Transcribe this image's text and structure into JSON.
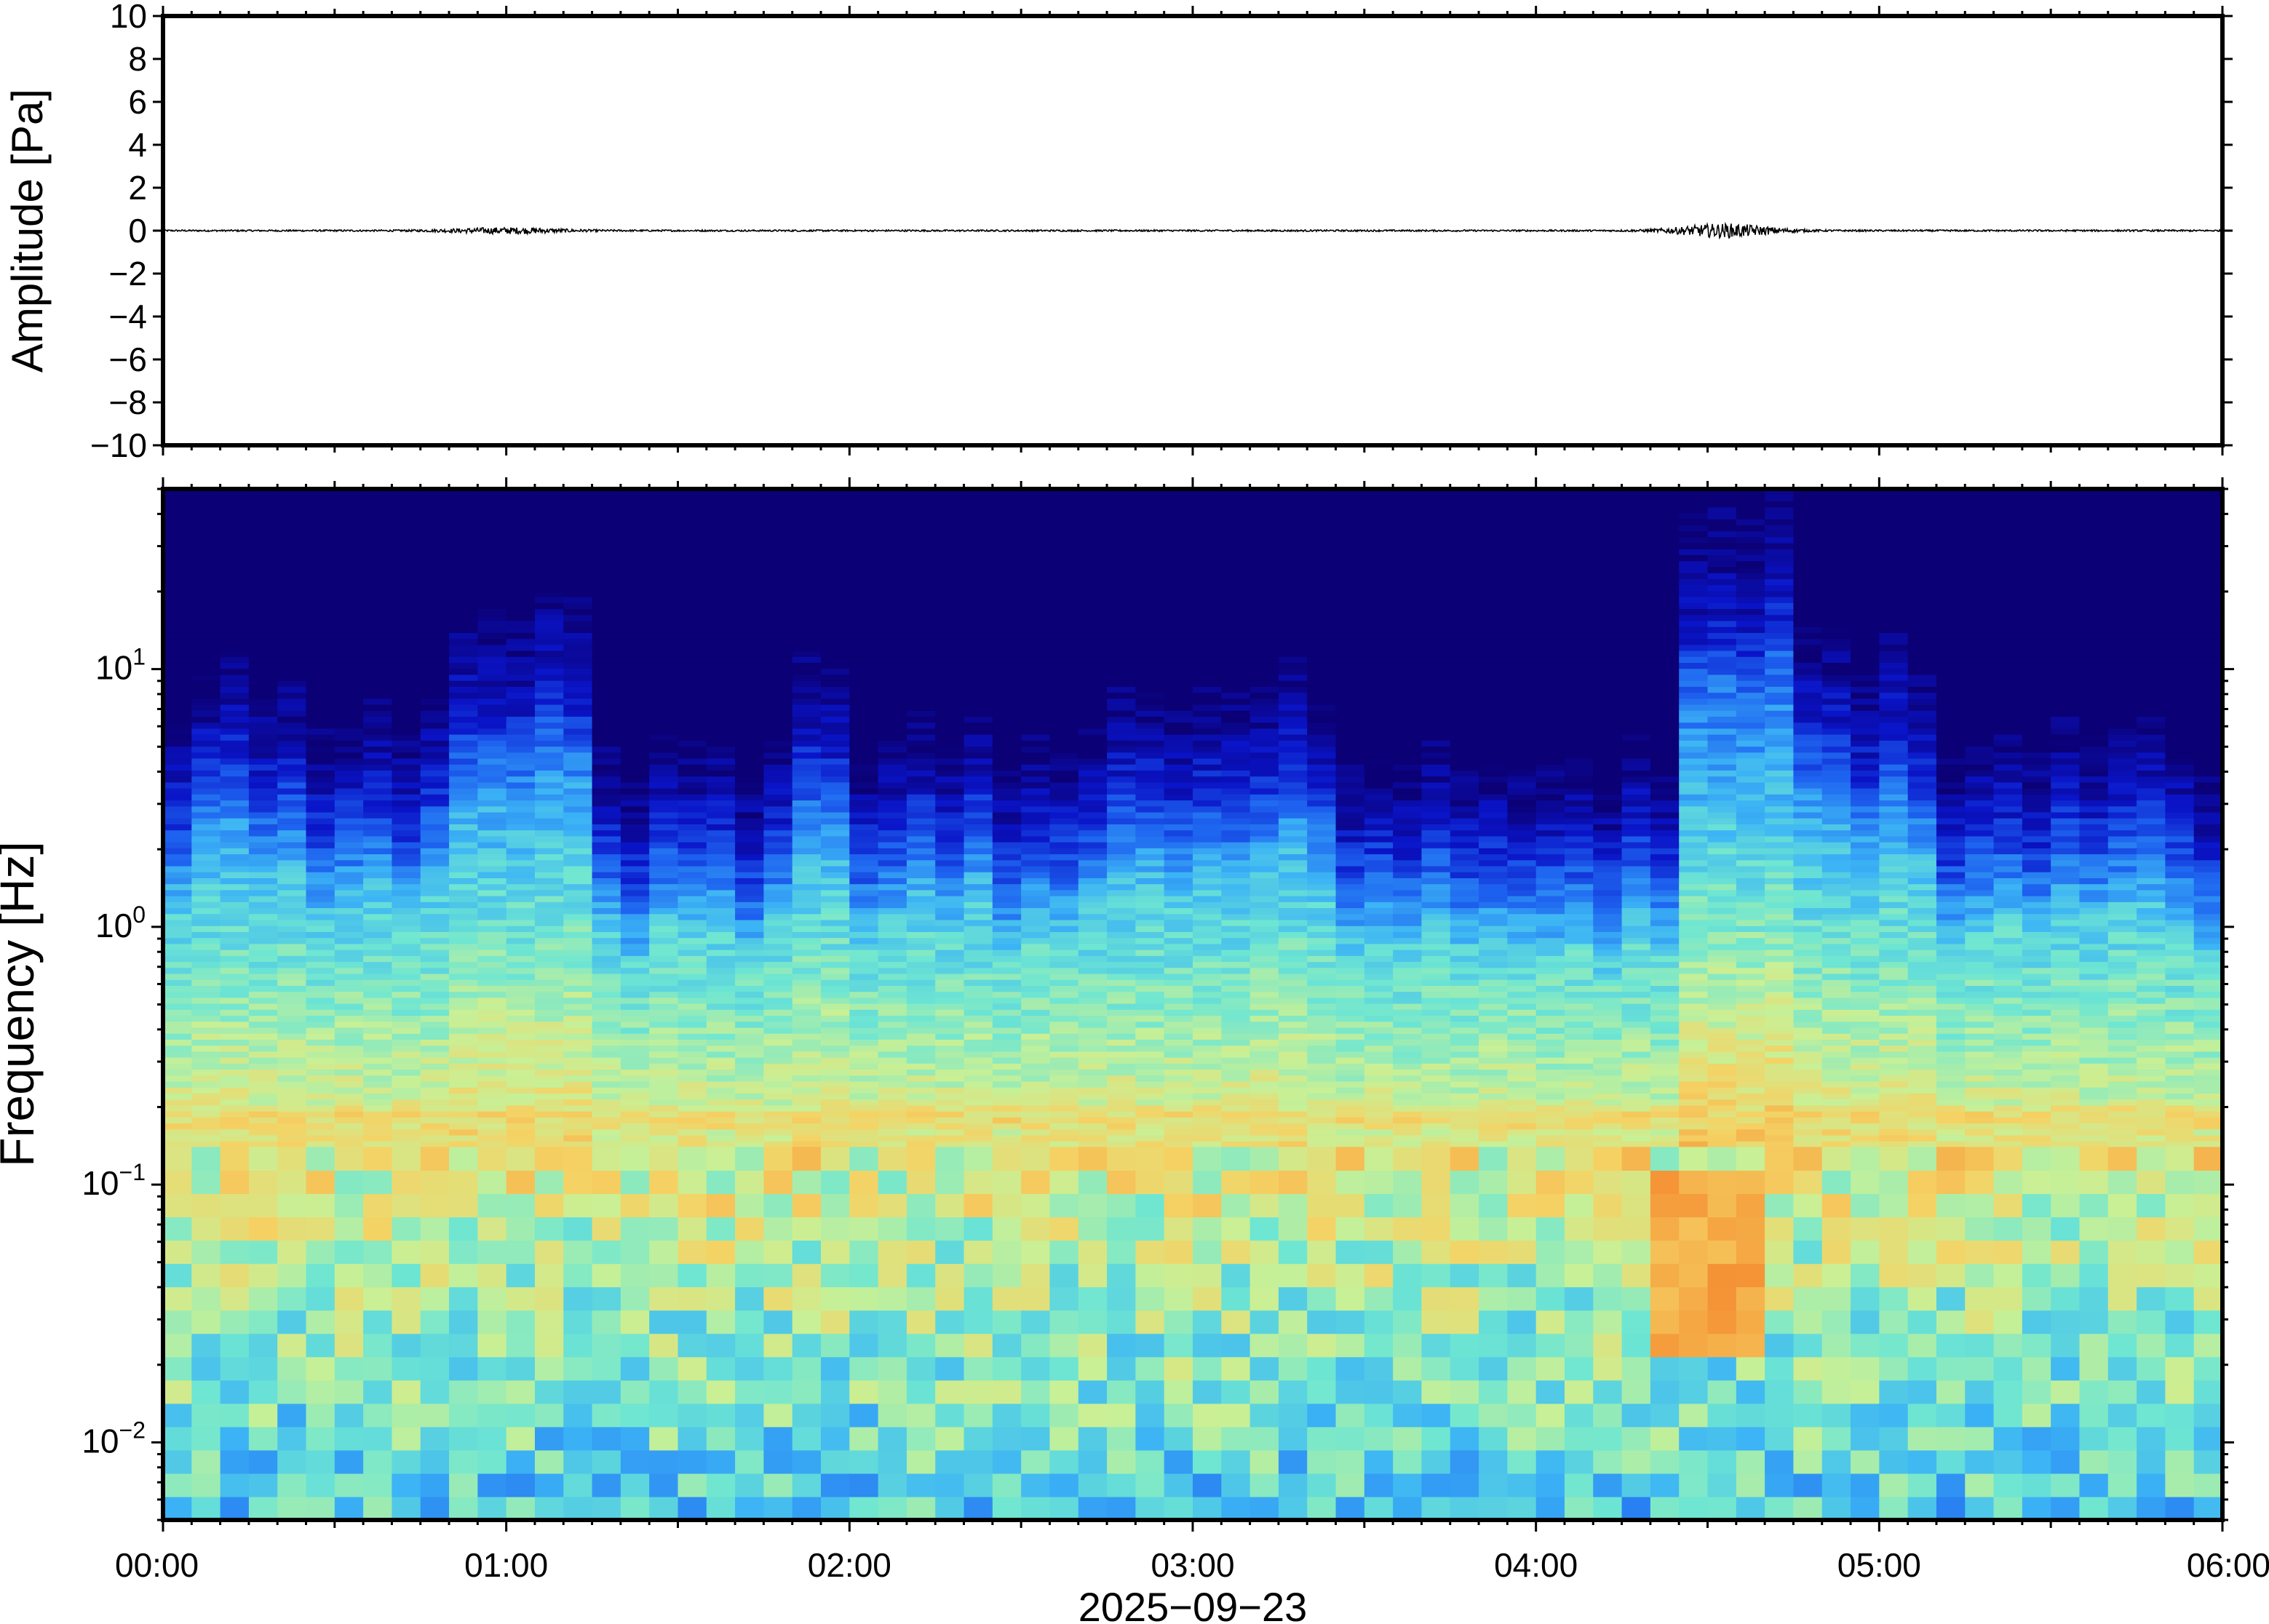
{
  "chart_data": [
    {
      "type": "line",
      "ylabel": "Amplitude [Pa]",
      "ylim": [
        -10,
        10
      ],
      "yticks": [
        10,
        8,
        6,
        4,
        2,
        0,
        -2,
        -4,
        -6,
        -8,
        -10
      ],
      "ytick_labels": [
        "10",
        "8",
        "6",
        "4",
        "2",
        "0",
        "−2",
        "−4",
        "−6",
        "−8",
        "−10"
      ],
      "x_range_hours": [
        0,
        6
      ],
      "baseline": 0,
      "series": [
        {
          "color": "#000000",
          "bursts": [
            {
              "center_hour": 1.0,
              "width_hours": 0.35,
              "peak": 0.12
            },
            {
              "center_hour": 4.55,
              "width_hours": 0.3,
              "peak": 0.3
            }
          ],
          "background_noise": 0.04
        }
      ]
    },
    {
      "type": "heatmap",
      "ylabel": "Frequency [Hz]",
      "y_scale": "log",
      "ylim": [
        0.005,
        50
      ],
      "yticks": [
        {
          "value": 0.01,
          "base": "10",
          "exp": "−2"
        },
        {
          "value": 0.1,
          "base": "10",
          "exp": "−1"
        },
        {
          "value": 1,
          "base": "10",
          "exp": "0"
        },
        {
          "value": 10,
          "base": "10",
          "exp": "1"
        }
      ],
      "x_ticks": [
        "00:00",
        "01:00",
        "02:00",
        "03:00",
        "04:00",
        "05:00",
        "06:00"
      ],
      "x_tick_hours": [
        0,
        1,
        2,
        3,
        4,
        5,
        6
      ],
      "xlabel": "2025−09−23",
      "colormap": [
        "#0b0075",
        "#0a14c8",
        "#1e64f0",
        "#3cb4f5",
        "#6ee6d2",
        "#c8f096",
        "#f5d264",
        "#f59637",
        "#e6461e"
      ],
      "activity_profile": [
        {
          "start_hour": 0.0,
          "end_hour": 0.45,
          "level": 0.5
        },
        {
          "start_hour": 0.45,
          "end_hour": 0.8,
          "level": 0.45
        },
        {
          "start_hour": 0.8,
          "end_hour": 1.22,
          "level": 0.75
        },
        {
          "start_hour": 1.22,
          "end_hour": 1.8,
          "level": 0.3
        },
        {
          "start_hour": 1.8,
          "end_hour": 2.0,
          "level": 0.6
        },
        {
          "start_hour": 2.0,
          "end_hour": 2.75,
          "level": 0.35
        },
        {
          "start_hour": 2.75,
          "end_hour": 3.4,
          "level": 0.5
        },
        {
          "start_hour": 3.4,
          "end_hour": 4.45,
          "level": 0.3
        },
        {
          "start_hour": 4.45,
          "end_hour": 4.75,
          "level": 0.95
        },
        {
          "start_hour": 4.75,
          "end_hour": 5.15,
          "level": 0.6
        },
        {
          "start_hour": 5.15,
          "end_hour": 6.0,
          "level": 0.35
        }
      ],
      "microseism_peak_hz": 0.18,
      "low_frequency_event": {
        "center_hour": 4.5,
        "freq_range_hz": [
          0.02,
          0.12
        ]
      }
    }
  ]
}
